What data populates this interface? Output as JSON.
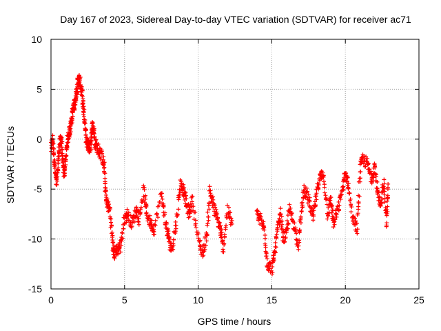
{
  "chart_data": {
    "type": "scatter",
    "title": "Day 167 of 2023, Sidereal Day-to-day VTEC variation (SDTVAR) for receiver ac71",
    "xlabel": "GPS time / hours",
    "ylabel": "SDTVAR / TECUs",
    "xlim": [
      0,
      25
    ],
    "ylim": [
      -15,
      10
    ],
    "x_ticks": [
      0,
      5,
      10,
      15,
      20,
      25
    ],
    "y_ticks": [
      -15,
      -10,
      -5,
      0,
      5,
      10
    ],
    "x_tick_labels": [
      "0",
      "5",
      "10",
      "15",
      "20",
      "25"
    ],
    "y_tick_labels": [
      "-15",
      "-10",
      "-5",
      "0",
      "5",
      "10"
    ],
    "grid": true,
    "marker": "+",
    "marker_color": "#ff0000",
    "series": [
      {
        "name": "SDTVAR",
        "approximate_trace": [
          [
            0.0,
            -1.0
          ],
          [
            0.1,
            0.0
          ],
          [
            0.2,
            -1.5
          ],
          [
            0.3,
            -3.5
          ],
          [
            0.4,
            -4.5
          ],
          [
            0.5,
            -2.0
          ],
          [
            0.6,
            -0.5
          ],
          [
            0.7,
            0.2
          ],
          [
            0.8,
            -2.5
          ],
          [
            0.9,
            -3.5
          ],
          [
            1.0,
            -2.0
          ],
          [
            1.1,
            -0.5
          ],
          [
            1.2,
            0.5
          ],
          [
            1.3,
            1.0
          ],
          [
            1.4,
            2.0
          ],
          [
            1.5,
            3.0
          ],
          [
            1.6,
            3.5
          ],
          [
            1.7,
            4.5
          ],
          [
            1.8,
            5.5
          ],
          [
            1.9,
            6.0
          ],
          [
            2.0,
            5.5
          ],
          [
            2.1,
            4.5
          ],
          [
            2.2,
            3.0
          ],
          [
            2.3,
            1.5
          ],
          [
            2.4,
            0.0
          ],
          [
            2.5,
            -0.5
          ],
          [
            2.6,
            -1.0
          ],
          [
            2.7,
            -0.5
          ],
          [
            2.8,
            1.5
          ],
          [
            2.9,
            1.0
          ],
          [
            3.0,
            -0.5
          ],
          [
            3.2,
            -1.0
          ],
          [
            3.4,
            -1.5
          ],
          [
            3.6,
            -2.5
          ],
          [
            3.7,
            -5.0
          ],
          [
            3.8,
            -6.5
          ],
          [
            4.0,
            -7.0
          ],
          [
            4.2,
            -10.5
          ],
          [
            4.3,
            -11.5
          ],
          [
            4.5,
            -11.0
          ],
          [
            4.7,
            -10.8
          ],
          [
            5.0,
            -8.0
          ],
          [
            5.2,
            -7.5
          ],
          [
            5.5,
            -8.5
          ],
          [
            5.8,
            -7.0
          ],
          [
            6.0,
            -8.0
          ],
          [
            6.3,
            -5.0
          ],
          [
            6.5,
            -7.5
          ],
          [
            6.8,
            -8.5
          ],
          [
            7.0,
            -9.0
          ],
          [
            7.5,
            -5.5
          ],
          [
            7.8,
            -8.5
          ],
          [
            8.0,
            -10.0
          ],
          [
            8.2,
            -11.0
          ],
          [
            8.5,
            -8.5
          ],
          [
            8.8,
            -4.5
          ],
          [
            9.0,
            -5.0
          ],
          [
            9.2,
            -6.5
          ],
          [
            9.4,
            -7.5
          ],
          [
            9.6,
            -6.0
          ],
          [
            10.0,
            -10.0
          ],
          [
            10.3,
            -11.5
          ],
          [
            10.6,
            -9.5
          ],
          [
            10.8,
            -5.0
          ],
          [
            11.0,
            -6.5
          ],
          [
            11.3,
            -8.0
          ],
          [
            11.5,
            -9.0
          ],
          [
            11.7,
            -11.0
          ],
          [
            12.0,
            -7.0
          ],
          [
            12.3,
            -8.5
          ],
          [
            14.0,
            -7.5
          ],
          [
            14.2,
            -8.0
          ],
          [
            14.5,
            -9.0
          ],
          [
            14.7,
            -12.5
          ],
          [
            15.0,
            -13.0
          ],
          [
            15.2,
            -11.5
          ],
          [
            15.4,
            -9.0
          ],
          [
            15.6,
            -7.5
          ],
          [
            15.8,
            -10.0
          ],
          [
            16.0,
            -9.5
          ],
          [
            16.2,
            -7.0
          ],
          [
            16.5,
            -8.5
          ],
          [
            16.8,
            -10.5
          ],
          [
            17.0,
            -7.5
          ],
          [
            17.2,
            -5.0
          ],
          [
            17.5,
            -6.0
          ],
          [
            17.8,
            -8.0
          ],
          [
            18.0,
            -6.0
          ],
          [
            18.2,
            -4.0
          ],
          [
            18.5,
            -3.5
          ],
          [
            18.8,
            -7.5
          ],
          [
            19.0,
            -6.0
          ],
          [
            19.2,
            -8.5
          ],
          [
            19.5,
            -7.0
          ],
          [
            19.8,
            -5.0
          ],
          [
            20.0,
            -3.5
          ],
          [
            20.2,
            -4.5
          ],
          [
            20.5,
            -8.0
          ],
          [
            20.8,
            -9.0
          ],
          [
            21.0,
            -3.0
          ],
          [
            21.2,
            -2.0
          ],
          [
            21.5,
            -2.5
          ],
          [
            21.8,
            -4.0
          ],
          [
            22.0,
            -2.5
          ],
          [
            22.2,
            -5.5
          ],
          [
            22.4,
            -7.0
          ],
          [
            22.6,
            -4.0
          ],
          [
            22.8,
            -8.5
          ],
          [
            22.9,
            -4.5
          ]
        ]
      }
    ]
  }
}
